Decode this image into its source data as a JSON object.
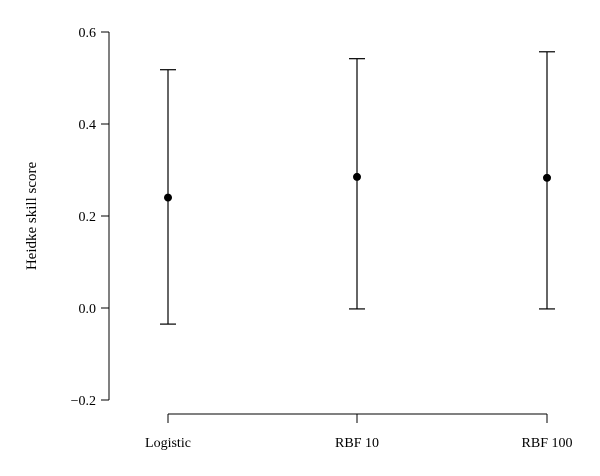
{
  "chart_data": {
    "type": "scatter",
    "title": "",
    "xlabel": "",
    "ylabel": "Heidke skill score",
    "ylim": [
      -0.2,
      0.6
    ],
    "yticks": [
      -0.2,
      0.0,
      0.2,
      0.4,
      0.6
    ],
    "ytick_labels": [
      "−0.2",
      "0.0",
      "0.2",
      "0.4",
      "0.6"
    ],
    "categories": [
      "Logistic",
      "RBF 10",
      "RBF 100"
    ],
    "values": [
      0.24,
      0.285,
      0.283
    ],
    "error_low": [
      -0.035,
      -0.002,
      -0.002
    ],
    "error_high": [
      0.518,
      0.542,
      0.557
    ],
    "grid": false,
    "legend": "none",
    "colors": {
      "ink": "#000000",
      "background": "#ffffff"
    }
  }
}
